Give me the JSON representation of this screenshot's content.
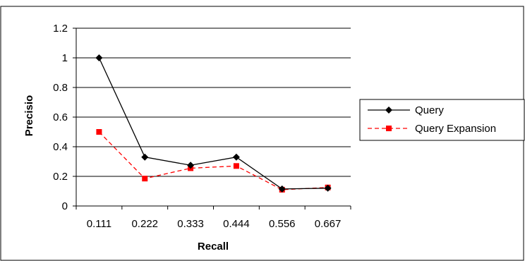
{
  "chart_data": {
    "type": "line",
    "title": "",
    "xlabel": "Recall",
    "ylabel": "Precisio",
    "categories": [
      "0.111",
      "0.222",
      "0.333",
      "0.444",
      "0.556",
      "0.667"
    ],
    "ylim": [
      0,
      1.2
    ],
    "yticks": [
      "0",
      "0.2",
      "0.4",
      "0.6",
      "0.8",
      "1",
      "1.2"
    ],
    "grid": "horizontal",
    "legend_position": "right",
    "series": [
      {
        "name": "Query",
        "values": [
          1.0,
          0.33,
          0.275,
          0.33,
          0.115,
          0.12
        ],
        "color": "#000000",
        "marker": "diamond",
        "line_style": "solid"
      },
      {
        "name": "Query Expansion",
        "values": [
          0.5,
          0.185,
          0.255,
          0.27,
          0.11,
          0.125
        ],
        "color": "#ff0000",
        "marker": "square",
        "line_style": "dashed"
      }
    ]
  }
}
